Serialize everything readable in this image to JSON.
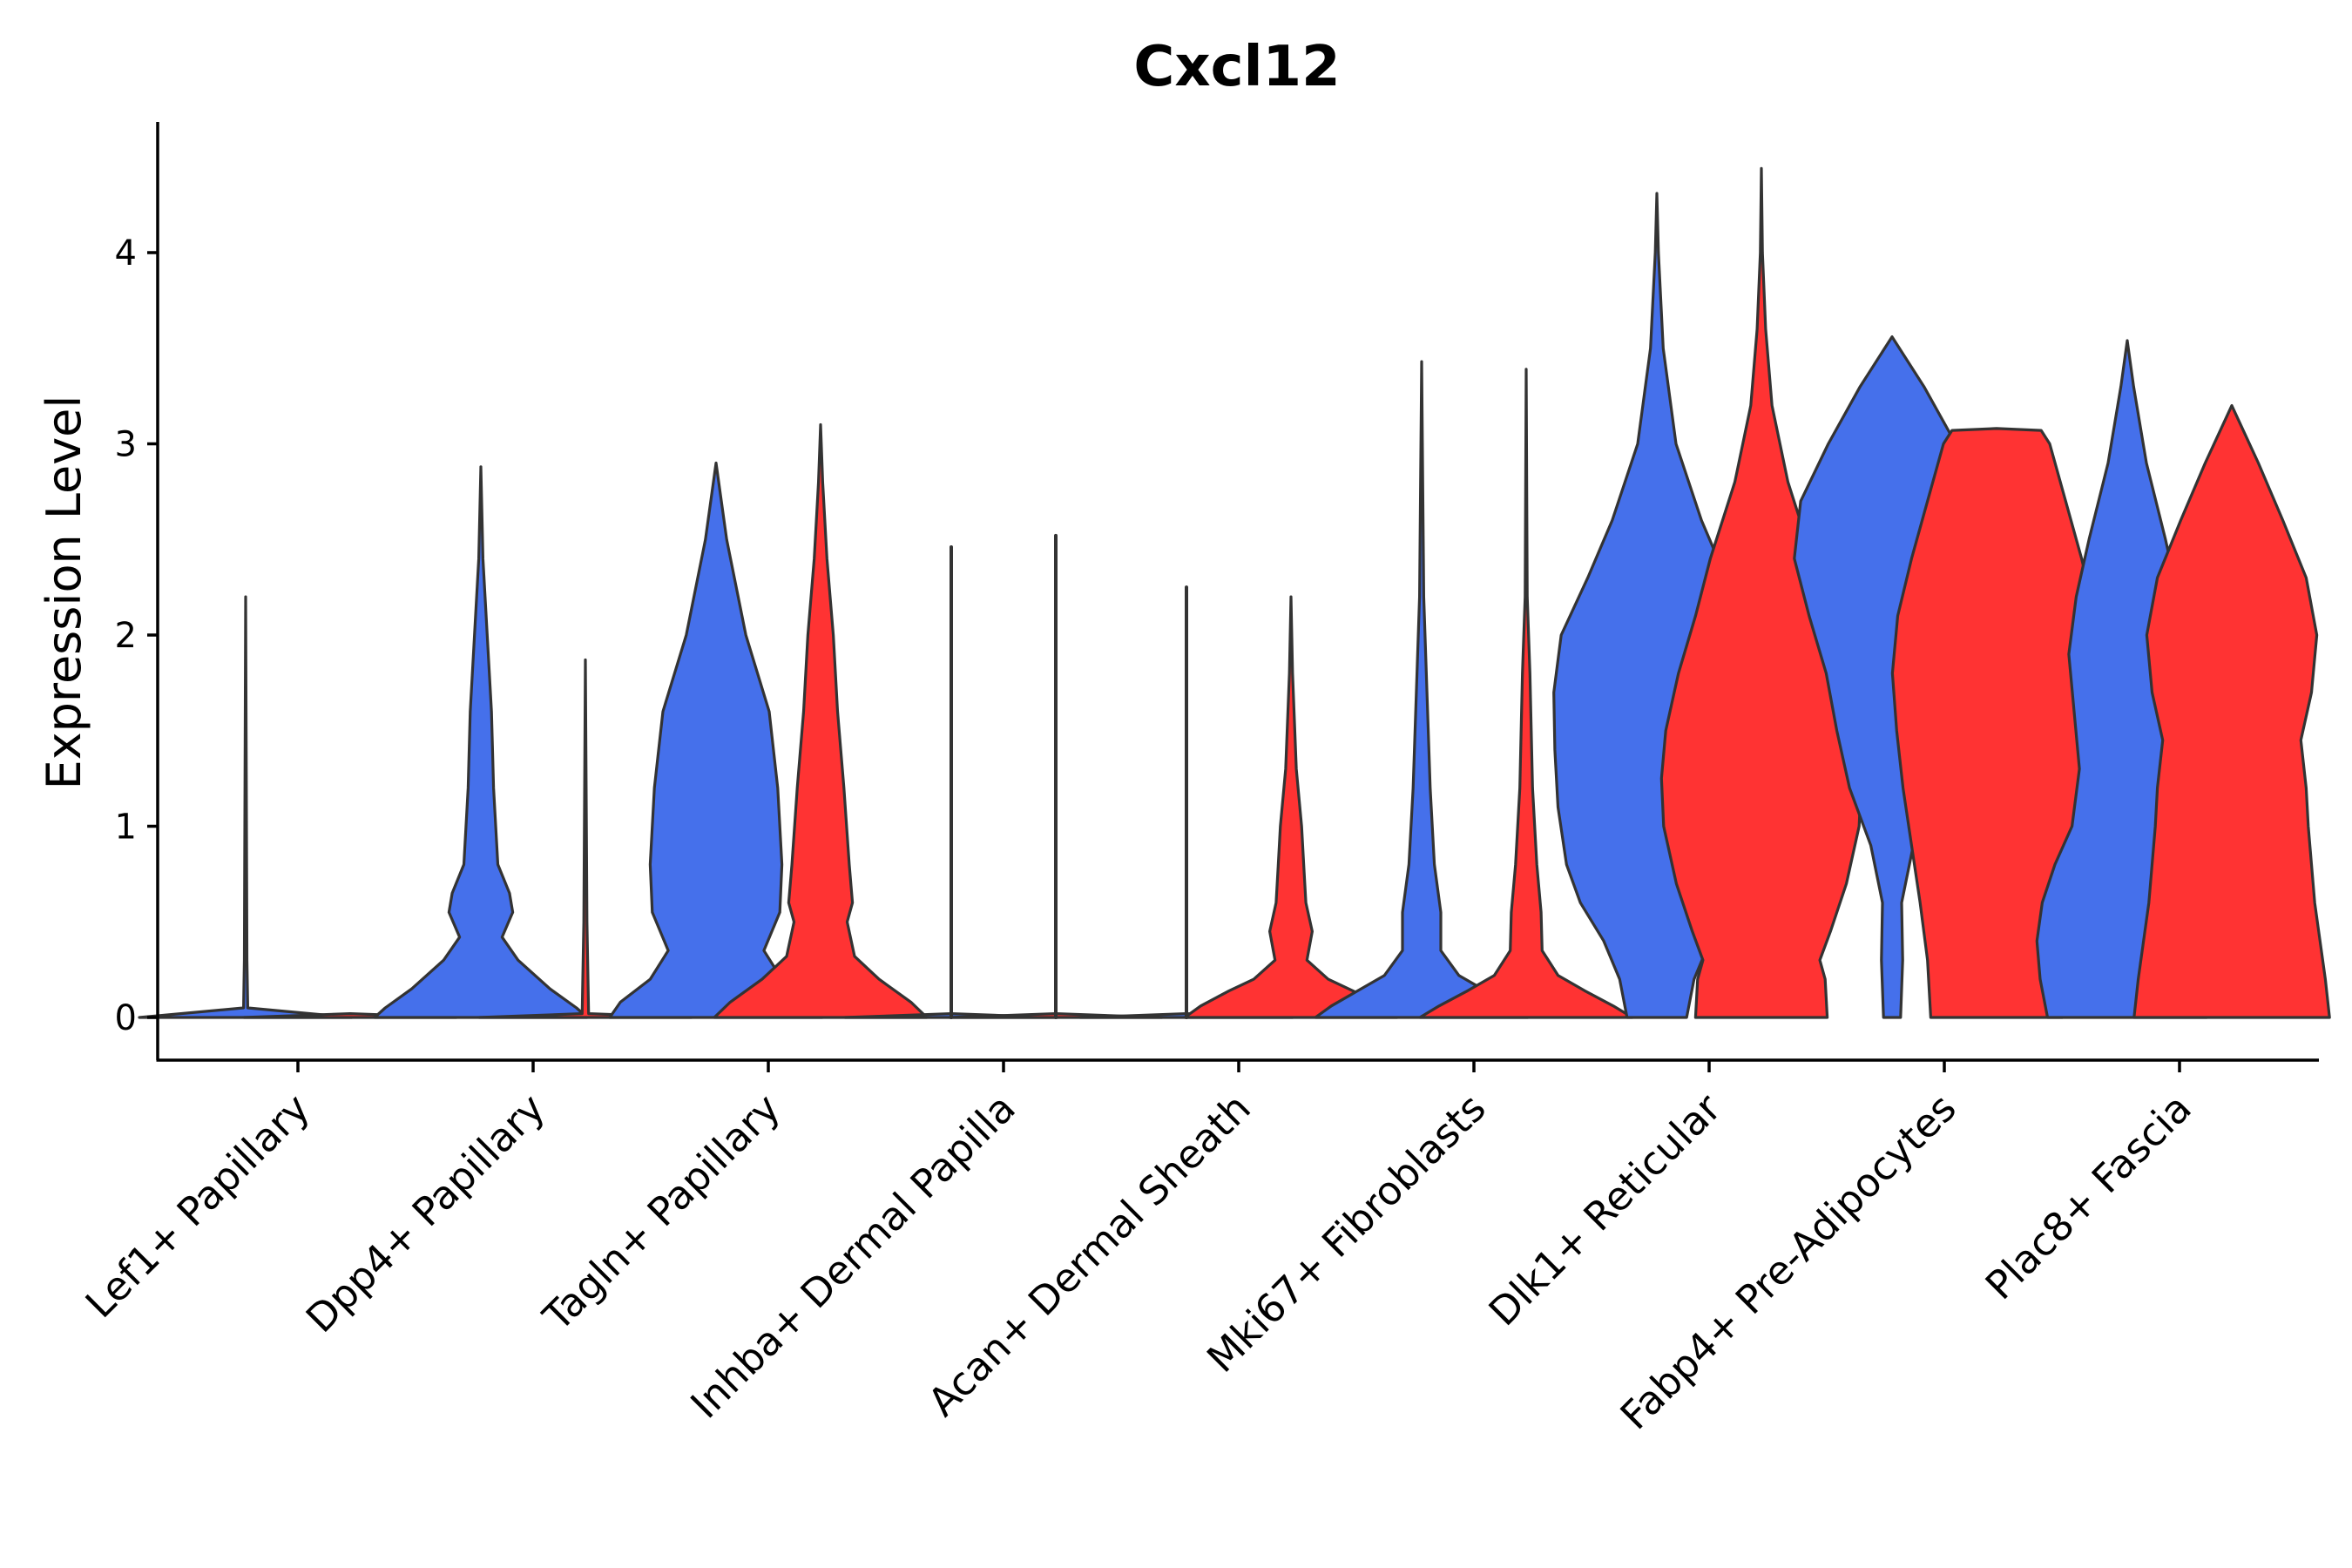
{
  "chart_data": {
    "type": "violin",
    "title": "Cxcl12",
    "xlabel": "",
    "ylabel": "Expression Level",
    "ylim": [
      -0.22,
      4.66
    ],
    "yticks": [
      0,
      1,
      2,
      3,
      4
    ],
    "grid": false,
    "legend": "none",
    "colors": {
      "group_a": "#4570EB",
      "group_b": "#FF3333",
      "outline": "#333333"
    },
    "categories": [
      "Lef1+ Papillary",
      "Dpp4+ Papillary",
      "Tagln+ Papillary",
      "Inhba+ Dermal Papilla",
      "Acan+ Dermal Sheath",
      "Mki67+ Fibroblasts",
      "Dlk1+ Reticular",
      "Fabp4+ Pre-Adipocytes",
      "Plac8+ Fascia"
    ],
    "violins": [
      {
        "category": "Lef1+ Papillary",
        "group": "a",
        "max": 2.2,
        "profile": [
          [
            0,
            1.0
          ],
          [
            0.05,
            0.02
          ],
          [
            0.3,
            0.012
          ],
          [
            0.7,
            0.01
          ],
          [
            2.2,
            0.0
          ]
        ]
      },
      {
        "category": "Lef1+ Papillary",
        "group": "b",
        "max": 0.0,
        "profile": [
          [
            0,
            1.0
          ],
          [
            0.02,
            0.0
          ]
        ]
      },
      {
        "category": "Dpp4+ Papillary",
        "group": "a",
        "max": 2.88,
        "profile": [
          [
            0,
            1.0
          ],
          [
            0.05,
            0.9
          ],
          [
            0.15,
            0.65
          ],
          [
            0.3,
            0.35
          ],
          [
            0.42,
            0.2
          ],
          [
            0.55,
            0.3
          ],
          [
            0.65,
            0.27
          ],
          [
            0.8,
            0.16
          ],
          [
            1.2,
            0.12
          ],
          [
            1.6,
            0.1
          ],
          [
            2.0,
            0.06
          ],
          [
            2.4,
            0.02
          ],
          [
            2.88,
            0.0
          ]
        ]
      },
      {
        "category": "Dpp4+ Papillary",
        "group": "b",
        "max": 1.87,
        "profile": [
          [
            0,
            1.0
          ],
          [
            0.02,
            0.03
          ],
          [
            0.5,
            0.015
          ],
          [
            1.87,
            0.0
          ]
        ]
      },
      {
        "category": "Tagln+ Papillary",
        "group": "a",
        "max": 2.9,
        "profile": [
          [
            0,
            1.0
          ],
          [
            0.08,
            0.9
          ],
          [
            0.2,
            0.62
          ],
          [
            0.35,
            0.45
          ],
          [
            0.55,
            0.6
          ],
          [
            0.8,
            0.62
          ],
          [
            1.2,
            0.58
          ],
          [
            1.6,
            0.5
          ],
          [
            2.0,
            0.28
          ],
          [
            2.5,
            0.1
          ],
          [
            2.9,
            0.0
          ]
        ]
      },
      {
        "category": "Tagln+ Papillary",
        "group": "b",
        "max": 3.1,
        "profile": [
          [
            0,
            1.0
          ],
          [
            0.08,
            0.85
          ],
          [
            0.2,
            0.55
          ],
          [
            0.32,
            0.32
          ],
          [
            0.5,
            0.25
          ],
          [
            0.6,
            0.3
          ],
          [
            0.8,
            0.27
          ],
          [
            1.2,
            0.22
          ],
          [
            1.6,
            0.16
          ],
          [
            2.0,
            0.12
          ],
          [
            2.4,
            0.06
          ],
          [
            2.8,
            0.02
          ],
          [
            3.1,
            0.0
          ]
        ]
      },
      {
        "category": "Inhba+ Dermal Papilla",
        "group": "a",
        "max": 2.46,
        "profile": [
          [
            0,
            1.0
          ],
          [
            0.02,
            0.0
          ]
        ]
      },
      {
        "category": "Inhba+ Dermal Papilla",
        "group": "b",
        "max": 2.52,
        "profile": [
          [
            0,
            1.0
          ],
          [
            0.02,
            0.0
          ]
        ]
      },
      {
        "category": "Acan+ Dermal Sheath",
        "group": "a",
        "max": 2.25,
        "profile": [
          [
            0,
            1.0
          ],
          [
            0.02,
            0.0
          ]
        ]
      },
      {
        "category": "Acan+ Dermal Sheath",
        "group": "b",
        "max": 2.2,
        "profile": [
          [
            0,
            1.0
          ],
          [
            0.06,
            0.85
          ],
          [
            0.14,
            0.58
          ],
          [
            0.2,
            0.35
          ],
          [
            0.3,
            0.15
          ],
          [
            0.45,
            0.2
          ],
          [
            0.6,
            0.14
          ],
          [
            0.8,
            0.12
          ],
          [
            1.0,
            0.1
          ],
          [
            1.3,
            0.05
          ],
          [
            1.8,
            0.015
          ],
          [
            2.2,
            0.0
          ]
        ]
      },
      {
        "category": "Mki67+ Fibroblasts",
        "group": "a",
        "max": 3.43,
        "profile": [
          [
            0,
            1.0
          ],
          [
            0.06,
            0.85
          ],
          [
            0.14,
            0.6
          ],
          [
            0.22,
            0.35
          ],
          [
            0.35,
            0.18
          ],
          [
            0.55,
            0.18
          ],
          [
            0.8,
            0.12
          ],
          [
            1.2,
            0.08
          ],
          [
            1.7,
            0.05
          ],
          [
            2.2,
            0.02
          ],
          [
            3.43,
            0.0
          ]
        ]
      },
      {
        "category": "Mki67+ Fibroblasts",
        "group": "b",
        "max": 3.39,
        "profile": [
          [
            0,
            1.0
          ],
          [
            0.06,
            0.82
          ],
          [
            0.14,
            0.55
          ],
          [
            0.22,
            0.3
          ],
          [
            0.35,
            0.15
          ],
          [
            0.55,
            0.14
          ],
          [
            0.8,
            0.1
          ],
          [
            1.2,
            0.06
          ],
          [
            1.8,
            0.035
          ],
          [
            2.2,
            0.01
          ],
          [
            3.39,
            0.0
          ]
        ]
      },
      {
        "category": "Dlk1+ Reticular",
        "group": "a",
        "max": 4.31,
        "profile": [
          [
            0,
            0.28
          ],
          [
            0.2,
            0.35
          ],
          [
            0.4,
            0.5
          ],
          [
            0.6,
            0.72
          ],
          [
            0.8,
            0.85
          ],
          [
            1.1,
            0.93
          ],
          [
            1.4,
            0.96
          ],
          [
            1.7,
            0.97
          ],
          [
            2.0,
            0.9
          ],
          [
            2.3,
            0.65
          ],
          [
            2.6,
            0.42
          ],
          [
            3.0,
            0.18
          ],
          [
            3.5,
            0.06
          ],
          [
            4.0,
            0.015
          ],
          [
            4.31,
            0.0
          ]
        ]
      },
      {
        "category": "Dlk1+ Reticular",
        "group": "b",
        "max": 4.44,
        "profile": [
          [
            0,
            0.62
          ],
          [
            0.2,
            0.6
          ],
          [
            0.3,
            0.55
          ],
          [
            0.45,
            0.65
          ],
          [
            0.7,
            0.8
          ],
          [
            1.0,
            0.92
          ],
          [
            1.25,
            0.94
          ],
          [
            1.5,
            0.9
          ],
          [
            1.8,
            0.78
          ],
          [
            2.1,
            0.62
          ],
          [
            2.4,
            0.48
          ],
          [
            2.8,
            0.25
          ],
          [
            3.2,
            0.1
          ],
          [
            3.6,
            0.04
          ],
          [
            4.0,
            0.01
          ],
          [
            4.44,
            0.0
          ]
        ]
      },
      {
        "category": "Fabp4+ Pre-Adipocytes",
        "group": "a",
        "max": 3.56,
        "profile": [
          [
            0,
            0.08
          ],
          [
            0.3,
            0.1
          ],
          [
            0.6,
            0.09
          ],
          [
            0.9,
            0.2
          ],
          [
            1.2,
            0.4
          ],
          [
            1.5,
            0.52
          ],
          [
            1.8,
            0.62
          ],
          [
            2.1,
            0.78
          ],
          [
            2.4,
            0.92
          ],
          [
            2.7,
            0.86
          ],
          [
            3.0,
            0.6
          ],
          [
            3.3,
            0.3
          ],
          [
            3.56,
            0.0
          ]
        ]
      },
      {
        "category": "Fabp4+ Pre-Adipocytes",
        "group": "b",
        "max": 3.08,
        "profile": [
          [
            0,
            0.62
          ],
          [
            0.3,
            0.65
          ],
          [
            0.6,
            0.72
          ],
          [
            0.9,
            0.8
          ],
          [
            1.2,
            0.88
          ],
          [
            1.5,
            0.94
          ],
          [
            1.8,
            0.98
          ],
          [
            2.1,
            0.93
          ],
          [
            2.4,
            0.8
          ],
          [
            2.7,
            0.65
          ],
          [
            3.0,
            0.5
          ],
          [
            3.07,
            0.42
          ],
          [
            3.08,
            0.0
          ]
        ]
      },
      {
        "category": "Plac8+ Fascia",
        "group": "a",
        "max": 3.54,
        "profile": [
          [
            0,
            0.75
          ],
          [
            0.2,
            0.82
          ],
          [
            0.4,
            0.85
          ],
          [
            0.6,
            0.8
          ],
          [
            0.8,
            0.68
          ],
          [
            1.0,
            0.52
          ],
          [
            1.3,
            0.45
          ],
          [
            1.6,
            0.5
          ],
          [
            1.9,
            0.55
          ],
          [
            2.2,
            0.48
          ],
          [
            2.5,
            0.36
          ],
          [
            2.9,
            0.18
          ],
          [
            3.3,
            0.06
          ],
          [
            3.54,
            0.0
          ]
        ]
      },
      {
        "category": "Plac8+ Fascia",
        "group": "b",
        "max": 3.2,
        "profile": [
          [
            0,
            0.92
          ],
          [
            0.2,
            0.88
          ],
          [
            0.4,
            0.83
          ],
          [
            0.6,
            0.78
          ],
          [
            0.8,
            0.75
          ],
          [
            1.0,
            0.72
          ],
          [
            1.2,
            0.7
          ],
          [
            1.45,
            0.65
          ],
          [
            1.7,
            0.75
          ],
          [
            2.0,
            0.8
          ],
          [
            2.3,
            0.7
          ],
          [
            2.6,
            0.48
          ],
          [
            2.9,
            0.25
          ],
          [
            3.2,
            0.0
          ]
        ]
      }
    ]
  }
}
